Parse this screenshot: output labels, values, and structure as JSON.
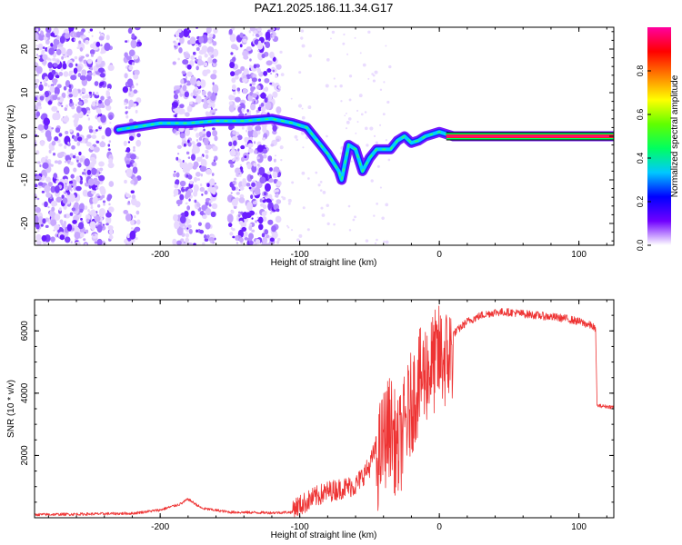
{
  "title": "PAZ1.2025.186.11.34.G17",
  "chart_data": [
    {
      "type": "heatmap",
      "xlabel": "Height of straight line (km)",
      "ylabel": "Frequency (Hz)",
      "xlim": [
        -290,
        125
      ],
      "ylim": [
        -25,
        25
      ],
      "xticks": [
        -200,
        -100,
        0,
        100
      ],
      "yticks": [
        -20,
        -10,
        0,
        10,
        20
      ],
      "xtick_labels": [
        "-200",
        "-100",
        "0",
        "100"
      ],
      "ytick_labels": [
        "-20",
        "-10",
        "0",
        "10",
        "20"
      ],
      "colorbar": {
        "label": "Normalized spectral amplitude",
        "range": [
          0,
          1
        ],
        "ticks": [
          0.0,
          0.2,
          0.4,
          0.6,
          0.8
        ],
        "tick_labels": [
          "0.0",
          "0.2",
          "0.4",
          "0.6",
          "0.8"
        ],
        "colormap": [
          "#ffffff",
          "#7000ff",
          "#0000ff",
          "#00c8ff",
          "#00ff60",
          "#60ff00",
          "#ffff00",
          "#ff8000",
          "#ff0000",
          "#ff00a0"
        ]
      },
      "ridge": {
        "x": [
          -230,
          -220,
          -200,
          -180,
          -160,
          -140,
          -120,
          -105,
          -95,
          -90,
          -85,
          -80,
          -75,
          -72,
          -70,
          -65,
          -60,
          -55,
          -50,
          -45,
          -40,
          -35,
          -30,
          -25,
          -20,
          -15,
          -10,
          -5,
          0,
          5,
          10,
          50,
          100,
          125
        ],
        "y": [
          1.5,
          2,
          3,
          3,
          3.5,
          3.5,
          4,
          3,
          2,
          0,
          -2,
          -4,
          -6.5,
          -8,
          -10,
          -2,
          -3,
          -8,
          -5,
          -3,
          -3,
          -3,
          -1,
          0,
          -1.5,
          -1,
          0,
          0.5,
          1,
          0.5,
          0,
          0,
          0,
          0
        ]
      },
      "grid": false,
      "legend": "right"
    },
    {
      "type": "line",
      "xlabel": "Height of straight line (km)",
      "ylabel": "SNR (10 * v/v)",
      "xlim": [
        -290,
        125
      ],
      "ylim": [
        0,
        7000
      ],
      "xticks": [
        -200,
        -100,
        0,
        100
      ],
      "yticks": [
        2000,
        4000,
        6000
      ],
      "xtick_labels": [
        "-200",
        "-100",
        "0",
        "100"
      ],
      "ytick_labels": [
        "2000",
        "4000",
        "6000"
      ],
      "series": [
        {
          "color": "#ee3333",
          "x": [
            -290,
            -250,
            -220,
            -200,
            -185,
            -180,
            -170,
            -150,
            -120,
            -105,
            -100,
            -90,
            -80,
            -70,
            -60,
            -50,
            -45,
            -40,
            -35,
            -30,
            -25,
            -20,
            -15,
            -10,
            -5,
            0,
            5,
            10,
            15,
            20,
            30,
            40,
            50,
            60,
            70,
            80,
            90,
            100,
            110,
            112,
            113,
            125
          ],
          "y": [
            100,
            120,
            140,
            250,
            450,
            600,
            300,
            180,
            160,
            180,
            250,
            500,
            700,
            800,
            900,
            1500,
            2200,
            3000,
            3500,
            2600,
            3400,
            4200,
            4800,
            5200,
            5400,
            5700,
            5600,
            5900,
            6100,
            6300,
            6500,
            6600,
            6600,
            6550,
            6500,
            6450,
            6400,
            6300,
            6150,
            6000,
            3600,
            3550
          ]
        }
      ],
      "grid": false
    }
  ]
}
